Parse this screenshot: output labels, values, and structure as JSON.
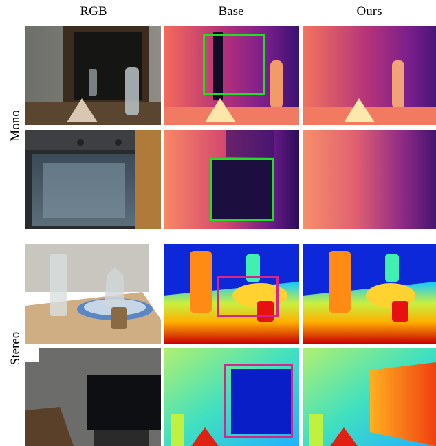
{
  "columns": [
    "RGB",
    "Base",
    "Ours"
  ],
  "groups": [
    "Mono",
    "Stereo"
  ],
  "colors": {
    "mono_highlight": "#22dd22",
    "stereo_highlight": "#d6258a"
  }
}
